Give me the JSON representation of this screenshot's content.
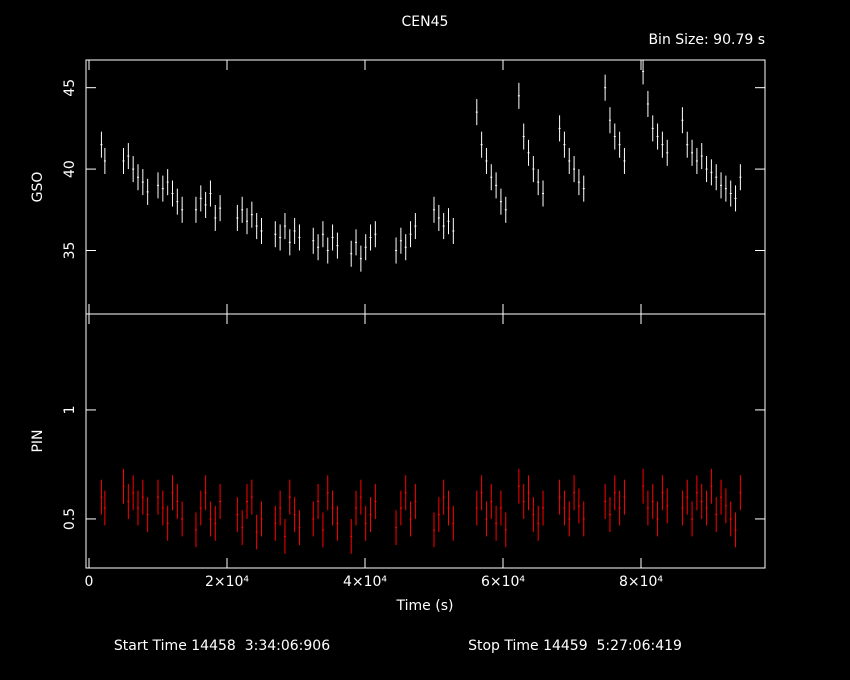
{
  "chart_data": {
    "type": "lightcurve",
    "title": "CEN45",
    "subtitle": "Bin Size: 90.79 s",
    "xlabel": "Time (s)",
    "footer": [
      "Start Time 14458  3:34:06:906",
      "Stop Time 14459  5:27:06:419"
    ],
    "xlim": [
      -435,
      97970
    ],
    "xticks": [
      0,
      {
        "value": 20000,
        "label": "2×10⁴"
      },
      {
        "value": 40000,
        "label": "4×10⁴"
      },
      {
        "value": 60000,
        "label": "6×10⁴"
      },
      {
        "value": 80000,
        "label": "8×10⁴"
      }
    ],
    "x": [
      1800,
      2300,
      5000,
      5700,
      6400,
      7100,
      7800,
      8500,
      10000,
      10700,
      11400,
      12100,
      12800,
      13500,
      15500,
      16200,
      16900,
      17600,
      18300,
      19000,
      21500,
      22200,
      22900,
      23600,
      24300,
      25000,
      27000,
      27700,
      28400,
      29100,
      29800,
      30500,
      32500,
      33200,
      33900,
      34600,
      35300,
      36000,
      38000,
      38700,
      39400,
      40100,
      40800,
      41500,
      44500,
      45200,
      45900,
      46600,
      47300,
      50000,
      50700,
      51400,
      52100,
      52800,
      56200,
      56900,
      57600,
      58300,
      59000,
      59700,
      60400,
      62300,
      63000,
      63700,
      64400,
      65100,
      65800,
      68200,
      68900,
      69600,
      70300,
      71000,
      71700,
      74800,
      75500,
      76200,
      76900,
      77600,
      80300,
      81000,
      81700,
      82400,
      83100,
      83800,
      86000,
      86700,
      87400,
      88100,
      88800,
      89500,
      90200,
      90900,
      91600,
      92300,
      93000,
      93700,
      94400
    ],
    "panels": [
      {
        "ylabel": "GSO",
        "color": "#ffffff",
        "ylim": [
          31.1,
          46.7
        ],
        "yticks": [
          35,
          40,
          45
        ],
        "error": 0.8,
        "values": [
          41.5,
          40.5,
          40.5,
          40.8,
          40,
          39.5,
          39.2,
          38.6,
          39,
          38.8,
          39.2,
          38.5,
          38,
          37.5,
          37.5,
          38.2,
          37.8,
          38.5,
          37,
          37.6,
          37,
          37.5,
          36.8,
          37.2,
          36.5,
          36.2,
          36,
          35.8,
          36.5,
          35.5,
          36.2,
          35.8,
          35.6,
          35.2,
          36,
          35,
          35.8,
          35.3,
          34.8,
          35.5,
          34.5,
          35.2,
          35.8,
          36,
          35,
          35.6,
          35.2,
          36,
          36.5,
          37.5,
          37,
          36.5,
          36.8,
          36.2,
          43.5,
          41.5,
          40.5,
          39.5,
          39,
          38,
          37.5,
          44.5,
          42,
          41,
          40,
          39.2,
          38.5,
          42.5,
          41.5,
          40.5,
          40,
          39.2,
          38.8,
          45,
          43,
          42,
          41.5,
          40.5,
          46,
          44,
          42.5,
          42,
          41.5,
          41,
          43,
          41.5,
          41,
          40.5,
          40.8,
          40,
          39.8,
          39.5,
          39,
          38.8,
          38.5,
          38.2,
          39.5
        ]
      },
      {
        "ylabel": "PIN",
        "color": "#ff0000",
        "ylim": [
          0.275,
          1.44
        ],
        "yticks": [
          0.5,
          1
        ],
        "error": 0.08,
        "values": [
          0.6,
          0.55,
          0.65,
          0.58,
          0.62,
          0.55,
          0.6,
          0.52,
          0.6,
          0.55,
          0.48,
          0.62,
          0.58,
          0.5,
          0.45,
          0.55,
          0.62,
          0.5,
          0.48,
          0.58,
          0.52,
          0.46,
          0.58,
          0.6,
          0.44,
          0.5,
          0.48,
          0.55,
          0.42,
          0.6,
          0.52,
          0.46,
          0.5,
          0.58,
          0.45,
          0.62,
          0.55,
          0.48,
          0.42,
          0.55,
          0.6,
          0.48,
          0.52,
          0.58,
          0.46,
          0.55,
          0.62,
          0.5,
          0.58,
          0.45,
          0.52,
          0.6,
          0.55,
          0.48,
          0.55,
          0.62,
          0.5,
          0.58,
          0.48,
          0.55,
          0.45,
          0.65,
          0.58,
          0.62,
          0.52,
          0.48,
          0.55,
          0.6,
          0.55,
          0.5,
          0.62,
          0.56,
          0.5,
          0.58,
          0.52,
          0.62,
          0.55,
          0.6,
          0.65,
          0.55,
          0.58,
          0.5,
          0.62,
          0.56,
          0.55,
          0.6,
          0.5,
          0.62,
          0.58,
          0.55,
          0.65,
          0.52,
          0.6,
          0.56,
          0.5,
          0.45,
          0.62
        ]
      }
    ]
  }
}
